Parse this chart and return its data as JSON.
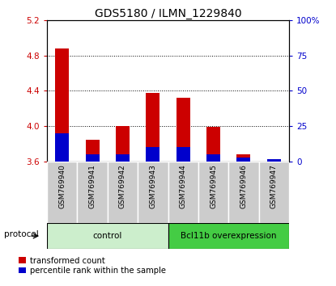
{
  "title": "GDS5180 / ILMN_1229840",
  "samples": [
    "GSM769940",
    "GSM769941",
    "GSM769942",
    "GSM769943",
    "GSM769944",
    "GSM769945",
    "GSM769946",
    "GSM769947"
  ],
  "red_values": [
    4.88,
    3.85,
    4.0,
    4.38,
    4.32,
    3.99,
    3.68,
    3.6
  ],
  "blue_values": [
    20,
    5,
    5,
    10,
    10,
    5,
    3,
    2
  ],
  "ylim_left": [
    3.6,
    5.2
  ],
  "ylim_right": [
    0,
    100
  ],
  "left_yticks": [
    3.6,
    4.0,
    4.4,
    4.8,
    5.2
  ],
  "right_yticks": [
    0,
    25,
    50,
    75,
    100
  ],
  "right_ytick_labels": [
    "0",
    "25",
    "50",
    "75",
    "100%"
  ],
  "control_samples": 4,
  "control_label": "control",
  "treatment_label": "Bcl11b overexpression",
  "control_color": "#cceecc",
  "treatment_color": "#44cc44",
  "bar_width": 0.45,
  "red_color": "#cc0000",
  "blue_color": "#0000cc",
  "bg_color": "#ffffff",
  "label_color_red": "#cc0000",
  "label_color_blue": "#0000cc",
  "legend_red": "transformed count",
  "legend_blue": "percentile rank within the sample",
  "protocol_label": "protocol",
  "title_size": 10,
  "gray_box_color": "#cccccc",
  "gray_box_edge": "#aaaaaa"
}
